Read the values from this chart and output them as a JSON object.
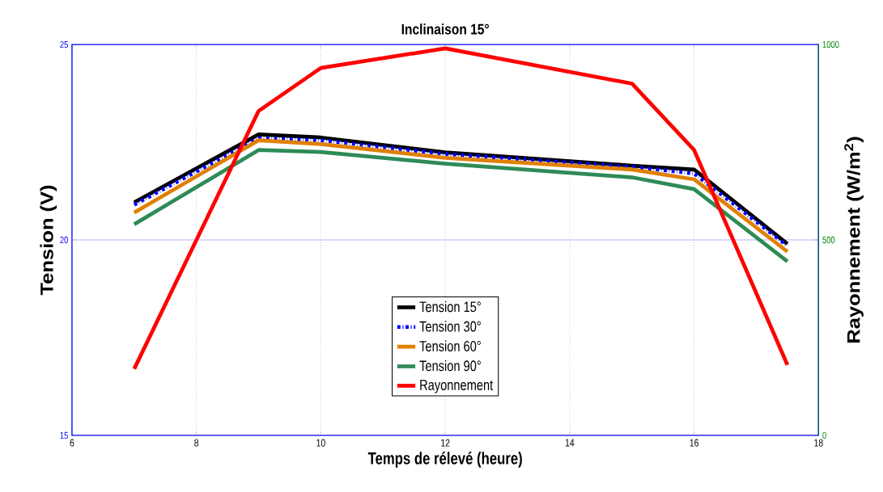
{
  "chart_data": {
    "type": "line",
    "title": "Inclinaison 15°",
    "xlabel": "Temps de rélevé (heure)",
    "ylabel": "Tension (V)",
    "y2label": "Rayonnement (W/m$^{2}$)",
    "x": [
      7,
      9,
      10,
      12,
      15,
      16,
      17.5
    ],
    "series": [
      {
        "name": "Tension 15°",
        "color": "#000000",
        "values": [
          20.96,
          22.7,
          22.62,
          22.24,
          21.9,
          21.8,
          19.9
        ]
      },
      {
        "name": "Tension 30°",
        "color": "#0000ff",
        "line_style": "dashdot",
        "values": [
          20.9,
          22.6,
          22.55,
          22.2,
          21.87,
          21.7,
          19.85
        ]
      },
      {
        "name": "Tension 60°",
        "color": "#e08000",
        "values": [
          20.7,
          22.55,
          22.45,
          22.1,
          21.8,
          21.55,
          19.7
        ]
      },
      {
        "name": "Tension 90°",
        "color": "#2e8b57",
        "values": [
          20.4,
          22.3,
          22.25,
          21.95,
          21.6,
          21.3,
          19.45
        ]
      },
      {
        "name": "Rayonnement",
        "color": "#ff0000",
        "axis": "y2",
        "values": [
          170,
          830,
          940,
          990,
          900,
          730,
          180
        ]
      }
    ],
    "xlim": [
      6,
      18
    ],
    "xticks": [
      6,
      8,
      10,
      12,
      14,
      16,
      18
    ],
    "ylim": [
      15,
      25
    ],
    "yticks": [
      15,
      20,
      25
    ],
    "y2lim": [
      0,
      1000
    ],
    "y2ticks": [
      0,
      500,
      1000
    ],
    "ref_lines": [
      {
        "axis": "y",
        "value": 20,
        "color": "#8080ff"
      }
    ],
    "grid": "x",
    "legend": "bottom",
    "line_style": "solid",
    "marker": "none"
  }
}
